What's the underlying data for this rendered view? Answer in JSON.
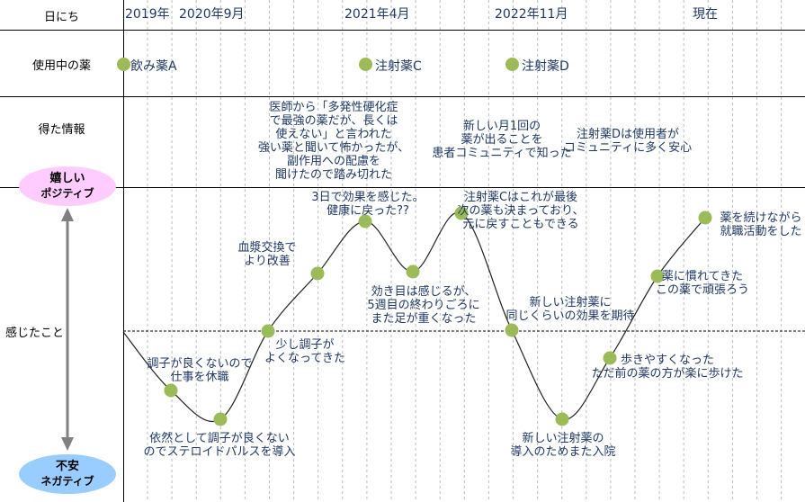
{
  "header": {
    "row_label": "日にち",
    "dates": [
      "2019年",
      "2020年9月",
      "2021年4月",
      "2022年11月",
      "現在"
    ]
  },
  "rows": {
    "drugs_label": "使用中の薬",
    "info_label": "得た情報",
    "feelings_label": "感じたこと"
  },
  "drugs": [
    "飲み薬A",
    "注射薬C",
    "注射薬D"
  ],
  "info": [
    {
      "lines": [
        "医師から「多発性硬化症",
        "で最強の薬だが、長くは",
        "使えない」と言われた",
        "強い薬と聞いて怖かったが、",
        "副作用への配慮を",
        "聞けたので踏み切れた"
      ]
    },
    {
      "lines": [
        "新しい月1回の",
        "薬が出ることを",
        "患者コミュニティで知った"
      ]
    },
    {
      "lines": [
        "注射薬Dは使用者が",
        "コミュニティに多く安心"
      ]
    }
  ],
  "scale": {
    "positive": [
      "嬉しい",
      "ポジティブ"
    ],
    "negative": [
      "不安",
      "ネガティブ"
    ]
  },
  "feelings": [
    {
      "lines": [
        "調子が良くないので",
        "仕事を休職"
      ]
    },
    {
      "lines": [
        "依然として調子が良くない",
        "のでステロイドパルスを導入"
      ]
    },
    {
      "lines": [
        "少し調子が",
        "よくなってきた"
      ]
    },
    {
      "lines": [
        "血漿交換で",
        "より改善"
      ]
    },
    {
      "lines": [
        "3日で効果を感じた。",
        "健康に戻った??"
      ]
    },
    {
      "lines": [
        "効き目は感じるが、",
        "5週目の終わりごろに",
        "また足が重くなった"
      ]
    },
    {
      "lines": [
        "注射薬Cはこれが最後",
        "次の薬も決まっており、",
        "元に戻すこともできる"
      ]
    },
    {
      "lines": [
        "新しい注射薬に",
        "同じくらいの効果を期待"
      ]
    },
    {
      "lines": [
        "新しい注射薬の",
        "導入のためまた入院"
      ]
    },
    {
      "lines": [
        "歩きやすくなった",
        "ただ前の薬の方が楽に歩けた"
      ]
    },
    {
      "lines": [
        "薬に慣れてきた",
        "この薬で頑張ろう"
      ]
    },
    {
      "lines": [
        "薬を続けながら",
        "就職活動をした"
      ]
    }
  ],
  "colors": {
    "text": "#1f3864",
    "dot": "#9bbb59",
    "positive": "#ffccff",
    "negative": "#99ccff"
  }
}
